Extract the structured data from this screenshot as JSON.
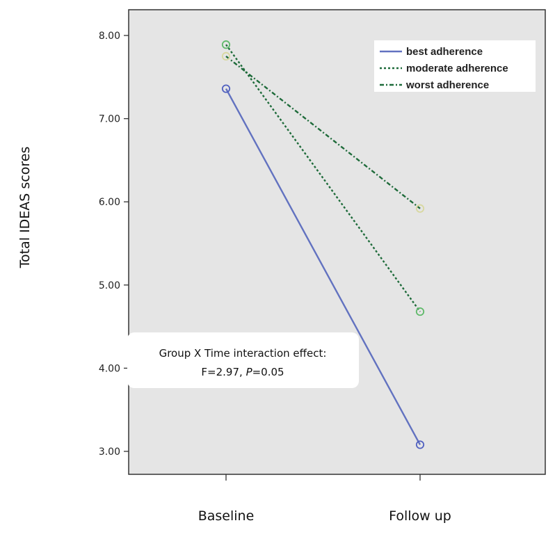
{
  "chart_data": {
    "type": "line",
    "categories": [
      "Baseline",
      "Follow up"
    ],
    "ylabel": "Total IDEAS scores",
    "xlabel": "",
    "ylim": [
      2.75,
      8.3
    ],
    "yticks": [
      "3.00",
      "4.00",
      "5.00",
      "6.00",
      "7.00",
      "8.00"
    ],
    "ytick_values": [
      3,
      4,
      5,
      6,
      7,
      8
    ],
    "grid": false,
    "legend_position": "top-right",
    "series": [
      {
        "name": "best adherence",
        "values": [
          7.36,
          3.08
        ],
        "color": "#6272c0",
        "line": "solid",
        "marker_color": "#5060c0"
      },
      {
        "name": "moderate adherence",
        "values": [
          7.89,
          4.68
        ],
        "color": "#1e6b3a",
        "line": "dotted",
        "marker_color": "#5fb96a"
      },
      {
        "name": "worst adherence",
        "values": [
          7.75,
          5.92
        ],
        "color": "#1e6b3a",
        "line": "dashdot",
        "marker_color": "#d8d8a0"
      }
    ],
    "annotation": {
      "line1": "Group X Time interaction effect:",
      "line2_prefix": "F=2.97, ",
      "line2_italic": "P",
      "line2_suffix": "=0.05"
    }
  },
  "colors": {
    "plot_background": "#e5e5e5",
    "axis": "#333333"
  }
}
